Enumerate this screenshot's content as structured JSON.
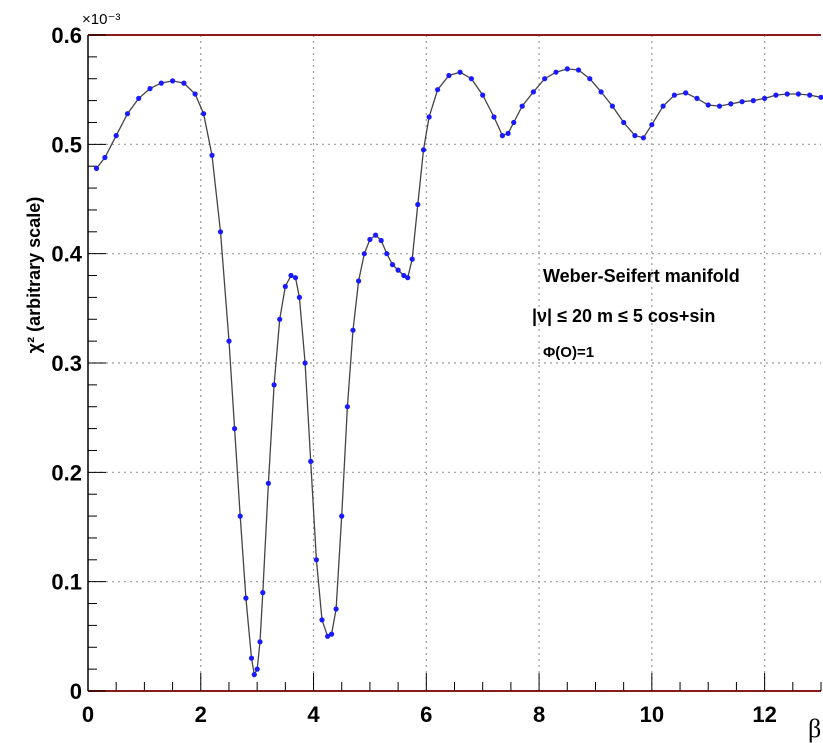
{
  "chart_data": {
    "type": "line",
    "title": "",
    "xlabel": "β",
    "ylabel": "χ² (arbitrary scale)",
    "y_multiplier": "×10⁻³",
    "xlim": [
      0,
      13
    ],
    "ylim": [
      0,
      0.6
    ],
    "grid": true,
    "x_ticks": [
      "0",
      "2",
      "4",
      "6",
      "8",
      "10",
      "12"
    ],
    "y_ticks": [
      "0",
      "0.1",
      "0.2",
      "0.3",
      "0.4",
      "0.5",
      "0.6"
    ],
    "annotations": [
      "Weber-Seifert manifold",
      "|ν| ≤ 20  m ≤ 5  cos+sin",
      "Φ(O)=1"
    ],
    "series": [
      {
        "line_color": "#444444",
        "marker_color": "#1a1aff",
        "x": [
          0.15,
          0.3,
          0.5,
          0.7,
          0.9,
          1.1,
          1.3,
          1.5,
          1.7,
          1.9,
          2.05,
          2.2,
          2.35,
          2.5,
          2.6,
          2.7,
          2.8,
          2.9,
          2.95,
          3.0,
          3.05,
          3.1,
          3.2,
          3.3,
          3.4,
          3.5,
          3.6,
          3.68,
          3.75,
          3.85,
          3.95,
          4.05,
          4.15,
          4.25,
          4.32,
          4.4,
          4.5,
          4.6,
          4.7,
          4.8,
          4.9,
          5.0,
          5.1,
          5.2,
          5.3,
          5.4,
          5.5,
          5.6,
          5.67,
          5.75,
          5.85,
          5.95,
          6.05,
          6.2,
          6.4,
          6.6,
          6.8,
          7.0,
          7.2,
          7.35,
          7.45,
          7.55,
          7.7,
          7.9,
          8.1,
          8.3,
          8.5,
          8.7,
          8.9,
          9.1,
          9.3,
          9.5,
          9.7,
          9.85,
          10.0,
          10.2,
          10.4,
          10.6,
          10.8,
          11.0,
          11.2,
          11.4,
          11.6,
          11.8,
          12.0,
          12.2,
          12.4,
          12.6,
          12.8,
          13.0
        ],
        "y": [
          0.478,
          0.488,
          0.508,
          0.528,
          0.542,
          0.551,
          0.556,
          0.558,
          0.556,
          0.546,
          0.528,
          0.49,
          0.42,
          0.32,
          0.24,
          0.16,
          0.085,
          0.03,
          0.015,
          0.02,
          0.045,
          0.09,
          0.19,
          0.28,
          0.34,
          0.37,
          0.38,
          0.378,
          0.36,
          0.3,
          0.21,
          0.12,
          0.065,
          0.05,
          0.052,
          0.075,
          0.16,
          0.26,
          0.33,
          0.375,
          0.4,
          0.413,
          0.417,
          0.412,
          0.4,
          0.39,
          0.385,
          0.38,
          0.378,
          0.395,
          0.445,
          0.495,
          0.525,
          0.55,
          0.563,
          0.566,
          0.56,
          0.545,
          0.525,
          0.508,
          0.51,
          0.52,
          0.535,
          0.548,
          0.56,
          0.566,
          0.569,
          0.568,
          0.56,
          0.548,
          0.535,
          0.52,
          0.508,
          0.506,
          0.518,
          0.535,
          0.545,
          0.547,
          0.542,
          0.536,
          0.535,
          0.537,
          0.539,
          0.54,
          0.542,
          0.545,
          0.546,
          0.546,
          0.545,
          0.543
        ]
      }
    ]
  }
}
